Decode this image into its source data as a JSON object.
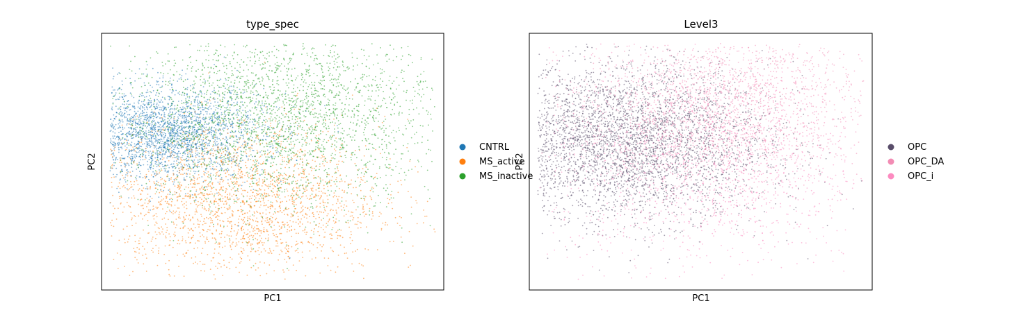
{
  "chart_data": [
    {
      "type": "scatter",
      "title": "type_spec",
      "xlabel": "PC1",
      "ylabel": "PC2",
      "grid": false,
      "ticks": false,
      "legend_position": "right",
      "series": [
        {
          "name": "CNTRL",
          "color": "#1f77b4",
          "cloud": {
            "center": [
              -0.62,
              0.22
            ],
            "spread": [
              0.28,
              0.18
            ],
            "count": 2600
          },
          "points": [
            [
              -0.8,
              0.3
            ],
            [
              -0.7,
              0.25
            ],
            [
              -0.6,
              0.2
            ],
            [
              -0.5,
              0.1
            ],
            [
              -0.45,
              -0.3
            ],
            [
              -0.2,
              -0.5
            ],
            [
              0.1,
              -0.75
            ]
          ]
        },
        {
          "name": "MS_active",
          "color": "#ff7f0e",
          "cloud": {
            "center": [
              -0.2,
              -0.3
            ],
            "spread": [
              0.42,
              0.3
            ],
            "count": 2400
          },
          "points": [
            [
              -0.6,
              0.1
            ],
            [
              -0.3,
              -0.2
            ],
            [
              0.0,
              -0.35
            ],
            [
              0.15,
              -0.45
            ],
            [
              0.2,
              -0.55
            ],
            [
              -0.1,
              -0.7
            ]
          ]
        },
        {
          "name": "MS_inactive",
          "color": "#2ca02c",
          "cloud": {
            "center": [
              0.05,
              0.35
            ],
            "spread": [
              0.48,
              0.35
            ],
            "count": 2800
          },
          "points": [
            [
              -0.4,
              0.5
            ],
            [
              0.0,
              0.6
            ],
            [
              0.2,
              0.7
            ],
            [
              0.4,
              0.6
            ],
            [
              0.6,
              0.4
            ],
            [
              0.8,
              0.3
            ],
            [
              0.3,
              0.1
            ]
          ]
        }
      ]
    },
    {
      "type": "scatter",
      "title": "Level3",
      "xlabel": "PC1",
      "ylabel": "PC2",
      "grid": false,
      "ticks": false,
      "legend_position": "right",
      "series": [
        {
          "name": "OPC",
          "color": "#594d6a",
          "cloud": {
            "center": [
              -0.45,
              0.15
            ],
            "spread": [
              0.42,
              0.3
            ],
            "count": 4200
          },
          "points": [
            [
              -0.8,
              0.3
            ],
            [
              -0.6,
              0.2
            ],
            [
              -0.4,
              0.1
            ],
            [
              -0.2,
              -0.2
            ],
            [
              0.0,
              -0.4
            ],
            [
              0.3,
              0.0
            ]
          ]
        },
        {
          "name": "OPC_DA",
          "color": "#f28cb4",
          "cloud": {
            "center": [
              0.15,
              0.45
            ],
            "spread": [
              0.42,
              0.3
            ],
            "count": 1800
          },
          "points": [
            [
              0.0,
              0.7
            ],
            [
              0.2,
              0.5
            ],
            [
              0.4,
              0.6
            ],
            [
              0.6,
              0.3
            ],
            [
              -0.2,
              0.2
            ]
          ]
        },
        {
          "name": "OPC_i",
          "color": "#fc8bc0",
          "cloud": {
            "center": [
              0.05,
              0.0
            ],
            "spread": [
              0.45,
              0.42
            ],
            "count": 1600
          },
          "points": [
            [
              -0.3,
              -0.2
            ],
            [
              0.0,
              -0.5
            ],
            [
              0.3,
              -0.3
            ],
            [
              0.5,
              0.2
            ]
          ]
        }
      ]
    }
  ]
}
